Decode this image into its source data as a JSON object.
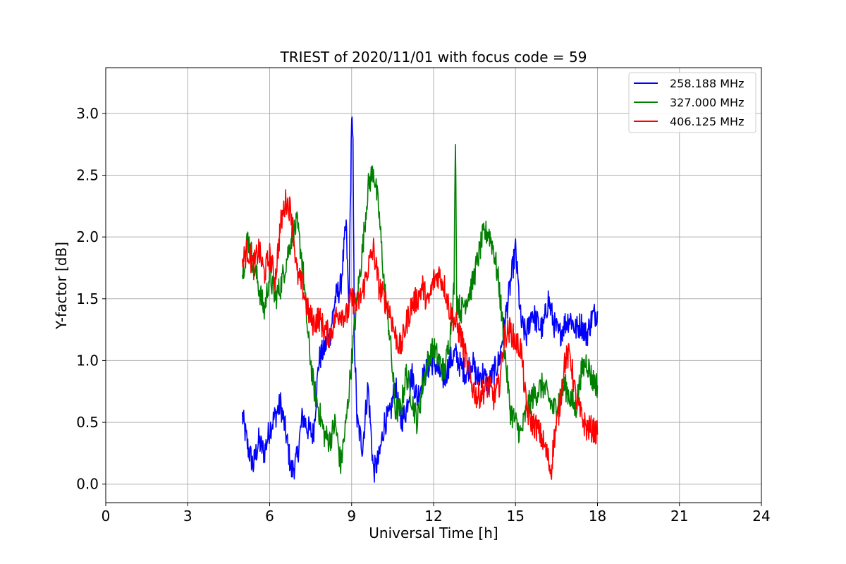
{
  "chart_data": {
    "type": "line",
    "title": "TRIEST of 2020/11/01 with focus code = 59",
    "xlabel": "Universal Time [h]",
    "ylabel": "Y-factor [dB]",
    "xlim": [
      0,
      24
    ],
    "ylim": [
      -0.15,
      3.37
    ],
    "xticks": [
      0,
      3,
      6,
      9,
      12,
      15,
      18,
      21,
      24
    ],
    "xtick_labels": [
      "0",
      "3",
      "6",
      "9",
      "12",
      "15",
      "18",
      "21",
      "24"
    ],
    "yticks": [
      0.0,
      0.5,
      1.0,
      1.5,
      2.0,
      2.5,
      3.0
    ],
    "ytick_labels": [
      "0.0",
      "0.5",
      "1.0",
      "1.5",
      "2.0",
      "2.5",
      "3.0"
    ],
    "grid": true,
    "legend_position": "top-right",
    "series": [
      {
        "name": "258.188 MHz",
        "color": "#0000ff",
        "x": [
          5.0,
          5.2,
          5.4,
          5.6,
          5.8,
          6.0,
          6.2,
          6.4,
          6.6,
          6.8,
          7.0,
          7.2,
          7.4,
          7.6,
          7.8,
          8.0,
          8.2,
          8.4,
          8.6,
          8.8,
          8.9,
          9.0,
          9.05,
          9.1,
          9.2,
          9.4,
          9.6,
          9.8,
          10.0,
          10.2,
          10.4,
          10.6,
          10.8,
          11.0,
          11.2,
          11.4,
          11.6,
          11.8,
          12.0,
          12.2,
          12.4,
          12.6,
          12.8,
          13.0,
          13.2,
          13.4,
          13.6,
          13.8,
          14.0,
          14.2,
          14.4,
          14.6,
          14.8,
          15.0,
          15.2,
          15.4,
          15.6,
          15.8,
          16.0,
          16.2,
          16.4,
          16.6,
          16.8,
          17.0,
          17.2,
          17.4,
          17.6,
          17.8,
          18.0
        ],
        "y": [
          0.55,
          0.3,
          0.15,
          0.35,
          0.25,
          0.45,
          0.55,
          0.65,
          0.4,
          0.1,
          0.2,
          0.55,
          0.45,
          0.4,
          1.0,
          1.1,
          1.2,
          1.5,
          1.6,
          2.1,
          1.4,
          3.0,
          2.7,
          1.2,
          0.5,
          0.3,
          0.8,
          0.1,
          0.2,
          0.5,
          0.55,
          0.8,
          0.5,
          0.6,
          0.9,
          0.7,
          0.85,
          0.95,
          1.0,
          0.9,
          0.85,
          1.0,
          1.05,
          0.95,
          0.9,
          1.0,
          0.85,
          0.9,
          0.8,
          0.9,
          1.0,
          1.3,
          1.6,
          1.9,
          1.3,
          1.2,
          1.4,
          1.3,
          1.25,
          1.5,
          1.3,
          1.2,
          1.3,
          1.35,
          1.25,
          1.3,
          1.2,
          1.35,
          1.4
        ]
      },
      {
        "name": "327.000 MHz",
        "color": "#008000",
        "x": [
          5.0,
          5.2,
          5.4,
          5.6,
          5.8,
          6.0,
          6.2,
          6.4,
          6.6,
          6.8,
          7.0,
          7.2,
          7.4,
          7.6,
          7.8,
          8.0,
          8.2,
          8.4,
          8.6,
          8.8,
          9.0,
          9.2,
          9.4,
          9.6,
          9.8,
          10.0,
          10.2,
          10.4,
          10.6,
          10.8,
          11.0,
          11.2,
          11.4,
          11.6,
          11.8,
          12.0,
          12.2,
          12.4,
          12.6,
          12.75,
          12.8,
          12.85,
          13.0,
          13.2,
          13.4,
          13.6,
          13.8,
          14.0,
          14.2,
          14.4,
          14.6,
          14.8,
          15.0,
          15.2,
          15.4,
          15.6,
          15.8,
          16.0,
          16.2,
          16.4,
          16.6,
          16.8,
          17.0,
          17.2,
          17.4,
          17.6,
          17.8,
          18.0
        ],
        "y": [
          1.7,
          2.0,
          1.8,
          1.6,
          1.4,
          1.7,
          1.5,
          1.6,
          1.8,
          2.0,
          2.1,
          1.8,
          1.2,
          0.8,
          0.6,
          0.4,
          0.35,
          0.5,
          0.15,
          0.5,
          1.0,
          1.5,
          1.9,
          2.4,
          2.55,
          2.2,
          1.6,
          1.2,
          0.6,
          0.6,
          0.9,
          0.7,
          0.5,
          0.8,
          1.0,
          1.1,
          1.0,
          0.9,
          1.2,
          1.6,
          2.85,
          1.5,
          1.4,
          1.5,
          1.6,
          1.8,
          2.0,
          2.05,
          1.9,
          1.6,
          1.1,
          0.6,
          0.5,
          0.4,
          0.6,
          0.7,
          0.75,
          0.8,
          0.7,
          0.6,
          0.7,
          0.8,
          0.7,
          0.6,
          0.9,
          1.0,
          0.85,
          0.8
        ]
      },
      {
        "name": "406.125 MHz",
        "color": "#ff0000",
        "x": [
          5.0,
          5.2,
          5.4,
          5.6,
          5.8,
          6.0,
          6.2,
          6.4,
          6.6,
          6.8,
          7.0,
          7.2,
          7.4,
          7.6,
          7.8,
          8.0,
          8.2,
          8.4,
          8.6,
          8.8,
          9.0,
          9.2,
          9.4,
          9.6,
          9.8,
          10.0,
          10.2,
          10.4,
          10.6,
          10.8,
          11.0,
          11.2,
          11.4,
          11.6,
          11.8,
          12.0,
          12.2,
          12.4,
          12.6,
          12.8,
          13.0,
          13.2,
          13.4,
          13.6,
          13.8,
          14.0,
          14.2,
          14.4,
          14.6,
          14.8,
          15.0,
          15.2,
          15.4,
          15.6,
          15.8,
          16.0,
          16.2,
          16.3,
          16.4,
          16.6,
          16.8,
          17.0,
          17.2,
          17.4,
          17.6,
          17.8,
          18.0
        ],
        "y": [
          1.8,
          1.9,
          1.75,
          1.9,
          1.7,
          1.85,
          1.65,
          2.1,
          2.3,
          2.2,
          1.7,
          1.6,
          1.4,
          1.3,
          1.35,
          1.25,
          1.2,
          1.35,
          1.4,
          1.35,
          1.5,
          1.45,
          1.55,
          1.75,
          1.9,
          1.6,
          1.5,
          1.4,
          1.2,
          1.1,
          1.3,
          1.45,
          1.5,
          1.6,
          1.45,
          1.65,
          1.7,
          1.6,
          1.4,
          1.3,
          1.2,
          1.0,
          0.8,
          0.7,
          0.75,
          0.8,
          0.7,
          0.8,
          1.2,
          1.25,
          1.15,
          1.1,
          0.6,
          0.5,
          0.45,
          0.35,
          0.2,
          0.1,
          0.35,
          0.6,
          1.0,
          1.05,
          0.7,
          0.55,
          0.45,
          0.45,
          0.4
        ]
      }
    ]
  }
}
